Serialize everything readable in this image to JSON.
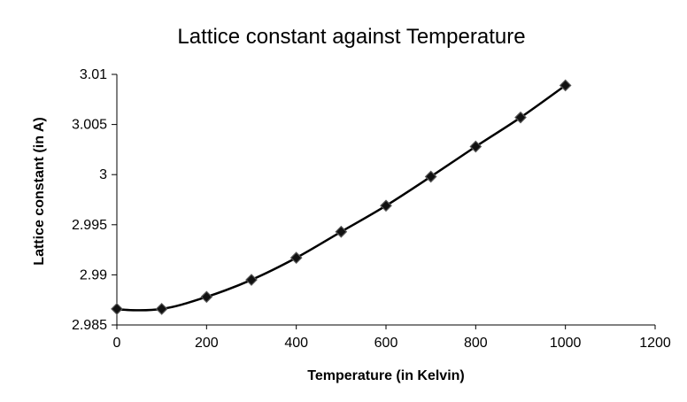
{
  "chart_data": {
    "type": "scatter",
    "title": "Lattice constant against Temperature",
    "xlabel": "Temperature (in Kelvin)",
    "ylabel": "Lattice constant (in A)",
    "xlim": [
      0,
      1200
    ],
    "ylim": [
      2.985,
      3.01
    ],
    "xticks": [
      "0",
      "200",
      "400",
      "600",
      "800",
      "1000",
      "1200"
    ],
    "yticks": [
      "2.985",
      "2.99",
      "2.995",
      "3",
      "3.005",
      "3.01"
    ],
    "grid": false,
    "legend": "none",
    "trendline": "smooth polynomial",
    "series": [
      {
        "x": [
          0,
          100,
          200,
          300,
          400,
          500,
          600,
          700,
          800,
          900,
          1000
        ],
        "y": [
          2.9866,
          2.9866,
          2.9878,
          2.9895,
          2.9917,
          2.9943,
          2.9969,
          2.9998,
          3.0028,
          3.0057,
          3.0089
        ]
      }
    ]
  }
}
